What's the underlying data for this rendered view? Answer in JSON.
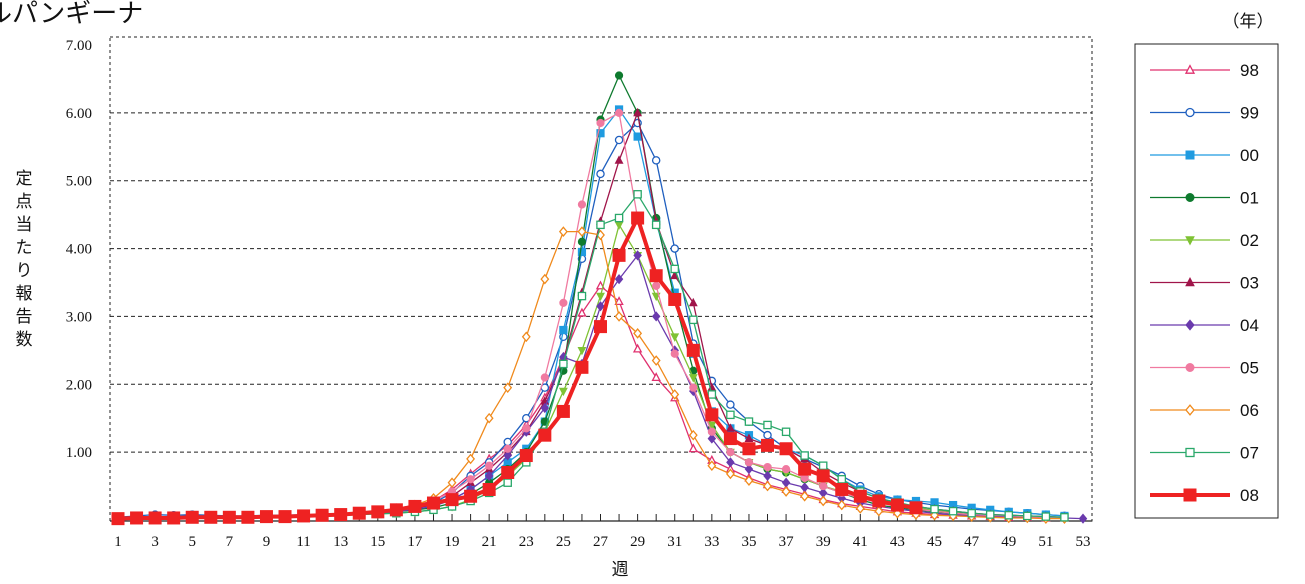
{
  "chart_data": {
    "type": "line",
    "title": "ルパンギーナ",
    "ylabel": "定点当たり報告数",
    "xlabel": "週",
    "legend_unit": "（年）",
    "legend_placement": "right",
    "grid": "horizontal dashed",
    "ylim": [
      0,
      7
    ],
    "xlim": [
      1,
      53
    ],
    "y_ticks": [
      "1.00",
      "2.00",
      "3.00",
      "4.00",
      "5.00",
      "6.00",
      "7.00"
    ],
    "x_ticks": [
      "1",
      "3",
      "5",
      "7",
      "9",
      "11",
      "13",
      "15",
      "17",
      "19",
      "21",
      "23",
      "25",
      "27",
      "29",
      "31",
      "33",
      "35",
      "37",
      "39",
      "41",
      "43",
      "45",
      "47",
      "49",
      "51",
      "53"
    ],
    "x": [
      1,
      2,
      3,
      4,
      5,
      6,
      7,
      8,
      9,
      10,
      11,
      12,
      13,
      14,
      15,
      16,
      17,
      18,
      19,
      20,
      21,
      22,
      23,
      24,
      25,
      26,
      27,
      28,
      29,
      30,
      31,
      32,
      33,
      34,
      35,
      36,
      37,
      38,
      39,
      40,
      41,
      42,
      43,
      44,
      45,
      46,
      47,
      48,
      49,
      50,
      51,
      52,
      53
    ],
    "series": [
      {
        "name": "98",
        "color": "#e0306e",
        "marker": "triangle-open",
        "values": [
          0.02,
          0.03,
          0.04,
          0.04,
          0.05,
          0.04,
          0.04,
          0.05,
          0.05,
          0.05,
          0.06,
          0.07,
          0.08,
          0.09,
          0.12,
          0.17,
          0.22,
          0.28,
          0.45,
          0.68,
          0.9,
          1.1,
          1.4,
          1.8,
          2.4,
          3.05,
          3.45,
          3.22,
          2.52,
          2.1,
          1.8,
          1.05,
          0.88,
          0.75,
          0.62,
          0.52,
          0.45,
          0.38,
          0.3,
          0.24,
          0.2,
          0.16,
          0.12,
          0.1,
          0.08,
          0.07,
          0.06,
          0.05,
          0.04,
          0.04,
          0.03,
          0.03,
          null
        ]
      },
      {
        "name": "99",
        "color": "#1f5fbf",
        "marker": "circle-open",
        "values": [
          0.04,
          0.06,
          0.08,
          0.07,
          0.08,
          0.07,
          0.06,
          0.06,
          0.07,
          0.07,
          0.08,
          0.08,
          0.09,
          0.1,
          0.12,
          0.15,
          0.2,
          0.25,
          0.4,
          0.65,
          0.85,
          1.15,
          1.5,
          1.95,
          2.7,
          3.85,
          5.1,
          5.6,
          5.85,
          5.3,
          4.0,
          2.6,
          2.05,
          1.7,
          1.45,
          1.25,
          1.05,
          0.9,
          0.78,
          0.65,
          0.5,
          0.38,
          0.3,
          0.26,
          0.22,
          0.19,
          0.16,
          0.14,
          0.12,
          0.1,
          0.08,
          0.06,
          null
        ]
      },
      {
        "name": "00",
        "color": "#1f9be0",
        "marker": "square",
        "values": [
          0.03,
          0.04,
          0.05,
          0.05,
          0.06,
          0.05,
          0.05,
          0.05,
          0.06,
          0.06,
          0.07,
          0.08,
          0.09,
          0.1,
          0.12,
          0.15,
          0.18,
          0.22,
          0.3,
          0.45,
          0.65,
          0.85,
          1.05,
          1.45,
          2.8,
          3.95,
          5.7,
          6.05,
          5.65,
          4.4,
          3.35,
          2.45,
          1.6,
          1.35,
          1.25,
          1.1,
          1.05,
          0.95,
          0.8,
          0.6,
          0.45,
          0.35,
          0.3,
          0.28,
          0.26,
          0.22,
          0.18,
          0.15,
          0.12,
          0.1,
          0.08,
          0.06,
          null
        ]
      },
      {
        "name": "01",
        "color": "#0e7a2e",
        "marker": "circle",
        "values": [
          0.03,
          0.03,
          0.04,
          0.04,
          0.05,
          0.04,
          0.04,
          0.05,
          0.05,
          0.05,
          0.06,
          0.06,
          0.07,
          0.08,
          0.1,
          0.12,
          0.15,
          0.18,
          0.25,
          0.38,
          0.55,
          0.75,
          1.0,
          1.45,
          2.2,
          4.1,
          5.9,
          6.55,
          6.0,
          4.45,
          3.25,
          2.2,
          1.35,
          1.0,
          0.85,
          0.75,
          0.7,
          0.6,
          0.5,
          0.4,
          0.3,
          0.22,
          0.18,
          0.15,
          0.12,
          0.1,
          0.08,
          0.07,
          0.06,
          0.05,
          0.04,
          0.03,
          null
        ]
      },
      {
        "name": "02",
        "color": "#7fc234",
        "marker": "triangle-down",
        "values": [
          0.02,
          0.03,
          0.03,
          0.04,
          0.04,
          0.04,
          0.04,
          0.04,
          0.05,
          0.05,
          0.05,
          0.06,
          0.07,
          0.08,
          0.09,
          0.1,
          0.12,
          0.15,
          0.2,
          0.3,
          0.45,
          0.65,
          0.9,
          1.3,
          1.9,
          2.5,
          3.3,
          4.35,
          3.9,
          3.3,
          2.7,
          2.1,
          1.4,
          1.0,
          0.85,
          0.75,
          0.7,
          0.6,
          0.5,
          0.42,
          0.35,
          0.28,
          0.22,
          0.18,
          0.14,
          0.12,
          0.1,
          0.08,
          0.07,
          0.06,
          0.05,
          0.04,
          null
        ]
      },
      {
        "name": "03",
        "color": "#a0154a",
        "marker": "triangle",
        "values": [
          0.02,
          0.03,
          0.04,
          0.04,
          0.05,
          0.04,
          0.04,
          0.05,
          0.05,
          0.05,
          0.06,
          0.07,
          0.08,
          0.09,
          0.11,
          0.14,
          0.18,
          0.22,
          0.35,
          0.55,
          0.75,
          1.0,
          1.3,
          1.75,
          2.35,
          3.35,
          4.4,
          5.3,
          6.0,
          4.4,
          3.6,
          3.2,
          1.95,
          1.35,
          1.2,
          1.1,
          1.05,
          0.9,
          0.7,
          0.55,
          0.42,
          0.32,
          0.25,
          0.2,
          0.16,
          0.13,
          0.1,
          0.08,
          0.07,
          0.06,
          0.05,
          0.04,
          null
        ]
      },
      {
        "name": "04",
        "color": "#6a3aad",
        "marker": "diamond",
        "values": [
          0.02,
          0.02,
          0.03,
          0.03,
          0.04,
          0.04,
          0.04,
          0.04,
          0.05,
          0.05,
          0.05,
          0.06,
          0.07,
          0.08,
          0.1,
          0.12,
          0.16,
          0.2,
          0.3,
          0.45,
          0.65,
          0.95,
          1.3,
          1.65,
          2.4,
          2.3,
          3.15,
          3.55,
          3.9,
          3.0,
          2.5,
          1.9,
          1.2,
          0.85,
          0.75,
          0.65,
          0.55,
          0.48,
          0.4,
          0.32,
          0.25,
          0.2,
          0.16,
          0.13,
          0.1,
          0.08,
          0.07,
          0.06,
          0.05,
          0.04,
          0.03,
          0.03,
          0.02
        ]
      },
      {
        "name": "05",
        "color": "#f07aa0",
        "marker": "circle",
        "values": [
          0.02,
          0.03,
          0.03,
          0.04,
          0.04,
          0.04,
          0.04,
          0.05,
          0.05,
          0.05,
          0.06,
          0.07,
          0.08,
          0.09,
          0.12,
          0.15,
          0.2,
          0.28,
          0.42,
          0.6,
          0.8,
          1.05,
          1.35,
          2.1,
          3.2,
          4.65,
          5.85,
          6.0,
          4.45,
          3.45,
          2.45,
          1.95,
          1.3,
          1.0,
          0.85,
          0.78,
          0.75,
          0.62,
          0.5,
          0.4,
          0.32,
          0.25,
          0.2,
          0.16,
          0.13,
          0.1,
          0.08,
          0.07,
          0.06,
          0.05,
          0.04,
          0.03,
          null
        ]
      },
      {
        "name": "06",
        "color": "#f08a1c",
        "marker": "diamond-open",
        "values": [
          0.02,
          0.03,
          0.03,
          0.04,
          0.04,
          0.04,
          0.04,
          0.05,
          0.05,
          0.05,
          0.06,
          0.07,
          0.08,
          0.09,
          0.12,
          0.16,
          0.22,
          0.32,
          0.55,
          0.9,
          1.5,
          1.95,
          2.7,
          3.55,
          4.25,
          4.25,
          4.2,
          3.0,
          2.75,
          2.35,
          1.85,
          1.25,
          0.8,
          0.68,
          0.58,
          0.5,
          0.42,
          0.35,
          0.28,
          0.22,
          0.17,
          0.13,
          0.1,
          0.08,
          0.07,
          0.06,
          0.05,
          0.04,
          0.03,
          0.03,
          0.02,
          0.02,
          null
        ]
      },
      {
        "name": "07",
        "color": "#2aa86a",
        "marker": "square-open",
        "values": [
          0.02,
          0.02,
          0.03,
          0.03,
          0.04,
          0.04,
          0.04,
          0.04,
          0.05,
          0.05,
          0.05,
          0.06,
          0.07,
          0.08,
          0.09,
          0.1,
          0.12,
          0.15,
          0.2,
          0.28,
          0.4,
          0.55,
          0.85,
          1.3,
          2.3,
          3.3,
          4.35,
          4.45,
          4.8,
          4.35,
          3.7,
          2.95,
          1.85,
          1.55,
          1.45,
          1.4,
          1.3,
          0.95,
          0.8,
          0.6,
          0.42,
          0.32,
          0.26,
          0.2,
          0.16,
          0.13,
          0.1,
          0.08,
          0.07,
          0.06,
          0.05,
          0.04,
          null
        ]
      },
      {
        "name": "08",
        "color": "#ee2222",
        "marker": "square",
        "values": [
          0.02,
          0.03,
          0.03,
          0.03,
          0.04,
          0.04,
          0.04,
          0.04,
          0.05,
          0.05,
          0.06,
          0.07,
          0.08,
          0.1,
          0.12,
          0.15,
          0.2,
          0.25,
          0.3,
          0.35,
          0.45,
          0.7,
          0.95,
          1.25,
          1.6,
          2.25,
          2.85,
          3.9,
          4.45,
          3.6,
          3.25,
          2.5,
          1.55,
          1.2,
          1.05,
          1.1,
          1.05,
          0.75,
          0.65,
          0.45,
          0.35,
          0.28,
          0.22,
          0.18,
          null,
          null,
          null,
          null,
          null,
          null,
          null,
          null,
          null
        ]
      }
    ]
  }
}
